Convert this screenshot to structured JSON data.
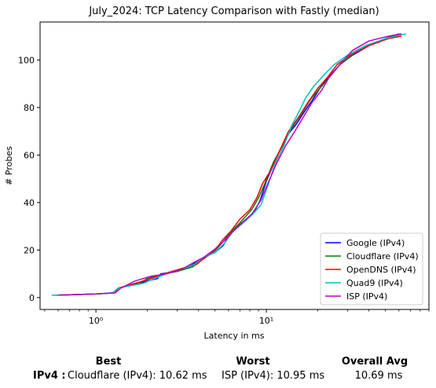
{
  "chart_data": {
    "type": "line",
    "title": "July_2024: TCP Latency Comparison with Fastly (median)",
    "xlabel": "Latency in ms",
    "ylabel": "# Probes",
    "xscale": "log",
    "xlim": [
      0.47,
      90
    ],
    "ylim": [
      -5,
      116
    ],
    "xticks": [
      1,
      10
    ],
    "xtick_labels": [
      "10⁰",
      "10¹"
    ],
    "yticks": [
      0,
      20,
      40,
      60,
      80,
      100
    ],
    "legend_position": "lower-right",
    "grid": false,
    "series": [
      {
        "name": "Google (IPv4)",
        "color": "#0000ff",
        "points": [
          [
            0.58,
            1
          ],
          [
            1.0,
            1.5
          ],
          [
            1.3,
            2
          ],
          [
            1.35,
            4
          ],
          [
            1.8,
            6
          ],
          [
            2.0,
            7
          ],
          [
            2.3,
            8
          ],
          [
            2.4,
            10
          ],
          [
            3.0,
            11
          ],
          [
            3.5,
            13
          ],
          [
            3.9,
            15
          ],
          [
            4.3,
            17
          ],
          [
            5.0,
            19
          ],
          [
            5.6,
            22
          ],
          [
            6.0,
            26
          ],
          [
            6.8,
            30
          ],
          [
            7.6,
            33
          ],
          [
            8.5,
            36
          ],
          [
            9.2,
            41
          ],
          [
            10.0,
            49
          ],
          [
            11.0,
            56
          ],
          [
            12.0,
            62
          ],
          [
            13.5,
            69
          ],
          [
            15.0,
            73
          ],
          [
            17.0,
            79
          ],
          [
            19.0,
            84
          ],
          [
            21.0,
            89
          ],
          [
            24.0,
            94
          ],
          [
            27.0,
            98
          ],
          [
            32.0,
            102
          ],
          [
            40.0,
            106
          ],
          [
            50.0,
            109
          ],
          [
            60.0,
            111
          ]
        ]
      },
      {
        "name": "Cloudflare (IPv4)",
        "color": "#008000",
        "points": [
          [
            0.58,
            1
          ],
          [
            1.0,
            1.5
          ],
          [
            1.3,
            2
          ],
          [
            1.35,
            4
          ],
          [
            1.8,
            6
          ],
          [
            2.0,
            8
          ],
          [
            2.5,
            10
          ],
          [
            3.0,
            11
          ],
          [
            3.7,
            13
          ],
          [
            4.2,
            16
          ],
          [
            4.9,
            19
          ],
          [
            5.5,
            23
          ],
          [
            6.1,
            27
          ],
          [
            7.1,
            32
          ],
          [
            8.2,
            37
          ],
          [
            9.0,
            42
          ],
          [
            9.8,
            48
          ],
          [
            11.0,
            57
          ],
          [
            12.5,
            64
          ],
          [
            14.0,
            71
          ],
          [
            16.0,
            77
          ],
          [
            18.0,
            83
          ],
          [
            20.0,
            87
          ],
          [
            23.0,
            92
          ],
          [
            27.0,
            98
          ],
          [
            33.0,
            103
          ],
          [
            42.0,
            107
          ],
          [
            55.0,
            110
          ],
          [
            62.0,
            111
          ]
        ]
      },
      {
        "name": "OpenDNS (IPv4)",
        "color": "#ff0000",
        "points": [
          [
            0.58,
            1
          ],
          [
            1.0,
            1.5
          ],
          [
            1.3,
            2
          ],
          [
            1.35,
            4
          ],
          [
            1.7,
            6
          ],
          [
            2.1,
            8
          ],
          [
            2.5,
            10
          ],
          [
            3.1,
            12
          ],
          [
            3.9,
            14
          ],
          [
            4.4,
            17
          ],
          [
            5.0,
            20
          ],
          [
            5.5,
            24
          ],
          [
            6.2,
            28
          ],
          [
            7.0,
            33
          ],
          [
            8.0,
            37
          ],
          [
            8.8,
            42
          ],
          [
            9.5,
            48
          ],
          [
            10.5,
            53
          ],
          [
            12.0,
            62
          ],
          [
            13.5,
            70
          ],
          [
            15.5,
            76
          ],
          [
            17.5,
            82
          ],
          [
            20.0,
            88
          ],
          [
            23.0,
            93
          ],
          [
            26.0,
            98
          ],
          [
            31.0,
            102
          ],
          [
            40.0,
            106
          ],
          [
            52.0,
            109
          ],
          [
            62.0,
            110
          ]
        ]
      },
      {
        "name": "Quad9 (IPv4)",
        "color": "#00bfbf",
        "points": [
          [
            0.55,
            1
          ],
          [
            1.0,
            1.5
          ],
          [
            1.25,
            2
          ],
          [
            1.35,
            4
          ],
          [
            1.9,
            6
          ],
          [
            2.2,
            8
          ],
          [
            2.6,
            10
          ],
          [
            3.2,
            12
          ],
          [
            3.8,
            14
          ],
          [
            4.3,
            17
          ],
          [
            5.0,
            19
          ],
          [
            5.7,
            23
          ],
          [
            6.4,
            28
          ],
          [
            7.2,
            31
          ],
          [
            8.3,
            35
          ],
          [
            9.3,
            39
          ],
          [
            10.2,
            47
          ],
          [
            11.2,
            56
          ],
          [
            12.7,
            64
          ],
          [
            14.0,
            72
          ],
          [
            15.5,
            78
          ],
          [
            17.0,
            84
          ],
          [
            19.0,
            89
          ],
          [
            22.0,
            94
          ],
          [
            25.0,
            98
          ],
          [
            30.0,
            102
          ],
          [
            38.0,
            106
          ],
          [
            50.0,
            109
          ],
          [
            66.0,
            111
          ]
        ]
      },
      {
        "name": "ISP (IPv4)",
        "color": "#bf00bf",
        "points": [
          [
            0.6,
            1
          ],
          [
            1.0,
            1.5
          ],
          [
            1.3,
            2
          ],
          [
            1.4,
            4
          ],
          [
            1.7,
            7
          ],
          [
            2.1,
            9
          ],
          [
            2.6,
            10
          ],
          [
            3.2,
            12
          ],
          [
            3.8,
            15
          ],
          [
            4.3,
            17
          ],
          [
            4.9,
            20
          ],
          [
            5.5,
            23
          ],
          [
            6.2,
            27
          ],
          [
            7.1,
            31
          ],
          [
            8.2,
            35
          ],
          [
            9.3,
            41
          ],
          [
            10.2,
            48
          ],
          [
            11.4,
            56
          ],
          [
            13.0,
            64
          ],
          [
            14.7,
            70
          ],
          [
            16.5,
            76
          ],
          [
            18.5,
            82
          ],
          [
            21.0,
            87
          ],
          [
            23.5,
            93
          ],
          [
            27.0,
            98
          ],
          [
            32.0,
            104
          ],
          [
            40.0,
            108
          ],
          [
            52.0,
            110
          ],
          [
            62.0,
            111
          ]
        ]
      }
    ]
  },
  "summary": {
    "best_header": "Best",
    "worst_header": "Worst",
    "avg_header": "Overall Avg",
    "row_label": "IPv4 :",
    "best_value": "Cloudflare (IPv4): 10.62 ms",
    "worst_value": "ISP (IPv4): 10.95 ms",
    "avg_value": "10.69 ms"
  }
}
